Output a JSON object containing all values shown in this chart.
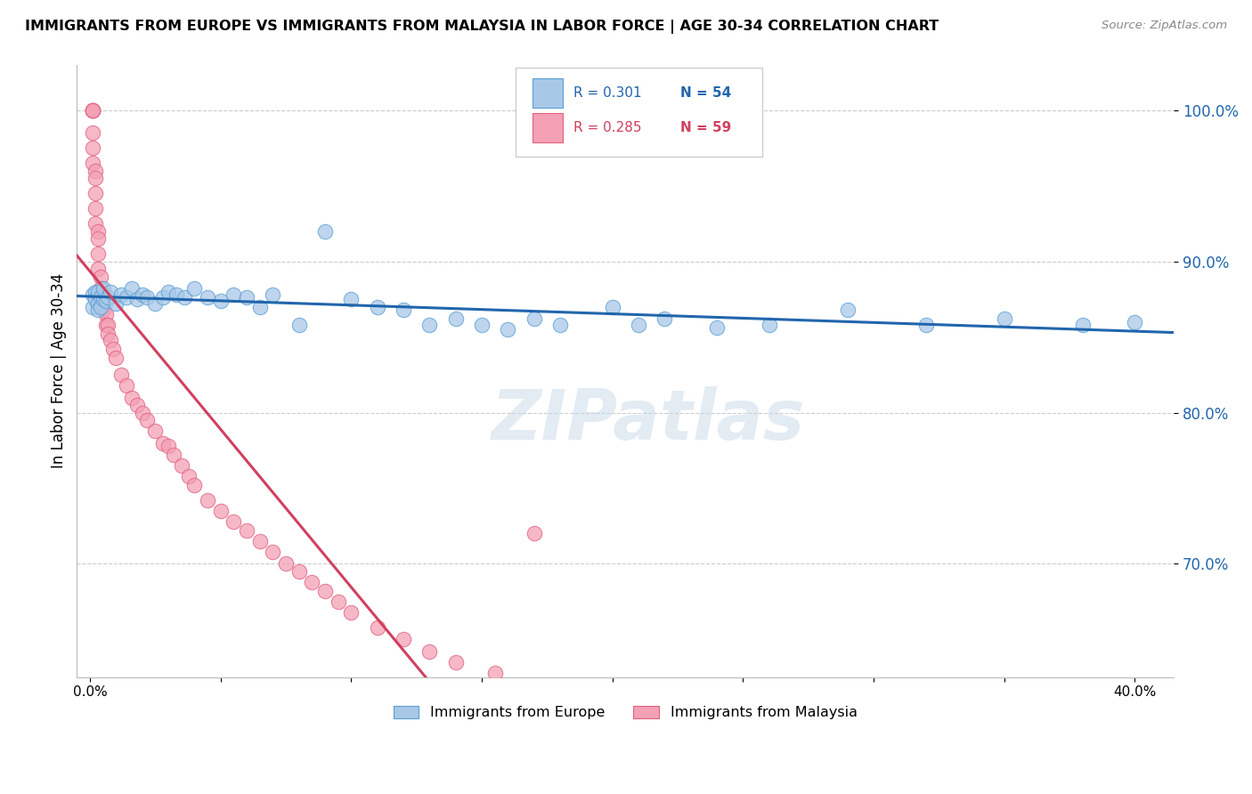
{
  "title": "IMMIGRANTS FROM EUROPE VS IMMIGRANTS FROM MALAYSIA IN LABOR FORCE | AGE 30-34 CORRELATION CHART",
  "source": "Source: ZipAtlas.com",
  "ylabel": "In Labor Force | Age 30-34",
  "y_ticks": [
    0.7,
    0.8,
    0.9,
    1.0
  ],
  "y_tick_labels": [
    "70.0%",
    "80.0%",
    "90.0%",
    "100.0%"
  ],
  "x_min": -0.005,
  "x_max": 0.415,
  "y_min": 0.625,
  "y_max": 1.03,
  "blue_R": 0.301,
  "blue_N": 54,
  "pink_R": 0.285,
  "pink_N": 59,
  "blue_color": "#a8c8e8",
  "pink_color": "#f4a0b5",
  "blue_edge_color": "#5a9fd4",
  "pink_edge_color": "#e06080",
  "blue_line_color": "#2166ac",
  "pink_line_color": "#d04060",
  "legend_label_blue": "Immigrants from Europe",
  "legend_label_pink": "Immigrants from Malaysia",
  "blue_scatter_x": [
    0.001,
    0.001,
    0.002,
    0.002,
    0.003,
    0.003,
    0.003,
    0.004,
    0.004,
    0.005,
    0.005,
    0.006,
    0.007,
    0.008,
    0.01,
    0.012,
    0.014,
    0.016,
    0.018,
    0.02,
    0.022,
    0.025,
    0.028,
    0.03,
    0.033,
    0.036,
    0.04,
    0.045,
    0.05,
    0.055,
    0.06,
    0.065,
    0.07,
    0.08,
    0.09,
    0.1,
    0.11,
    0.12,
    0.13,
    0.14,
    0.15,
    0.16,
    0.17,
    0.18,
    0.2,
    0.21,
    0.22,
    0.24,
    0.26,
    0.29,
    0.32,
    0.35,
    0.38,
    0.4
  ],
  "blue_scatter_y": [
    0.878,
    0.87,
    0.88,
    0.875,
    0.872,
    0.868,
    0.88,
    0.876,
    0.87,
    0.875,
    0.882,
    0.874,
    0.876,
    0.88,
    0.872,
    0.878,
    0.876,
    0.882,
    0.875,
    0.878,
    0.876,
    0.872,
    0.876,
    0.88,
    0.878,
    0.876,
    0.882,
    0.876,
    0.874,
    0.878,
    0.876,
    0.87,
    0.878,
    0.858,
    0.92,
    0.875,
    0.87,
    0.868,
    0.858,
    0.862,
    0.858,
    0.855,
    0.862,
    0.858,
    0.87,
    0.858,
    0.862,
    0.856,
    0.858,
    0.868,
    0.858,
    0.862,
    0.858,
    0.86
  ],
  "pink_scatter_x": [
    0.001,
    0.001,
    0.001,
    0.001,
    0.001,
    0.001,
    0.001,
    0.002,
    0.002,
    0.002,
    0.002,
    0.002,
    0.003,
    0.003,
    0.003,
    0.003,
    0.004,
    0.004,
    0.004,
    0.005,
    0.005,
    0.006,
    0.006,
    0.007,
    0.007,
    0.008,
    0.009,
    0.01,
    0.012,
    0.014,
    0.016,
    0.018,
    0.02,
    0.022,
    0.025,
    0.028,
    0.03,
    0.032,
    0.035,
    0.038,
    0.04,
    0.045,
    0.05,
    0.055,
    0.06,
    0.065,
    0.07,
    0.075,
    0.08,
    0.085,
    0.09,
    0.095,
    0.1,
    0.11,
    0.12,
    0.13,
    0.14,
    0.155,
    0.17
  ],
  "pink_scatter_y": [
    1.0,
    1.0,
    1.0,
    1.0,
    0.985,
    0.975,
    0.965,
    0.96,
    0.955,
    0.945,
    0.935,
    0.925,
    0.92,
    0.915,
    0.905,
    0.895,
    0.89,
    0.882,
    0.878,
    0.876,
    0.868,
    0.865,
    0.858,
    0.858,
    0.852,
    0.848,
    0.842,
    0.836,
    0.825,
    0.818,
    0.81,
    0.805,
    0.8,
    0.795,
    0.788,
    0.78,
    0.778,
    0.772,
    0.765,
    0.758,
    0.752,
    0.742,
    0.735,
    0.728,
    0.722,
    0.715,
    0.708,
    0.7,
    0.695,
    0.688,
    0.682,
    0.675,
    0.668,
    0.658,
    0.65,
    0.642,
    0.635,
    0.628,
    0.72
  ],
  "watermark": "ZIPatlas",
  "background_color": "#ffffff",
  "grid_color": "#cccccc"
}
